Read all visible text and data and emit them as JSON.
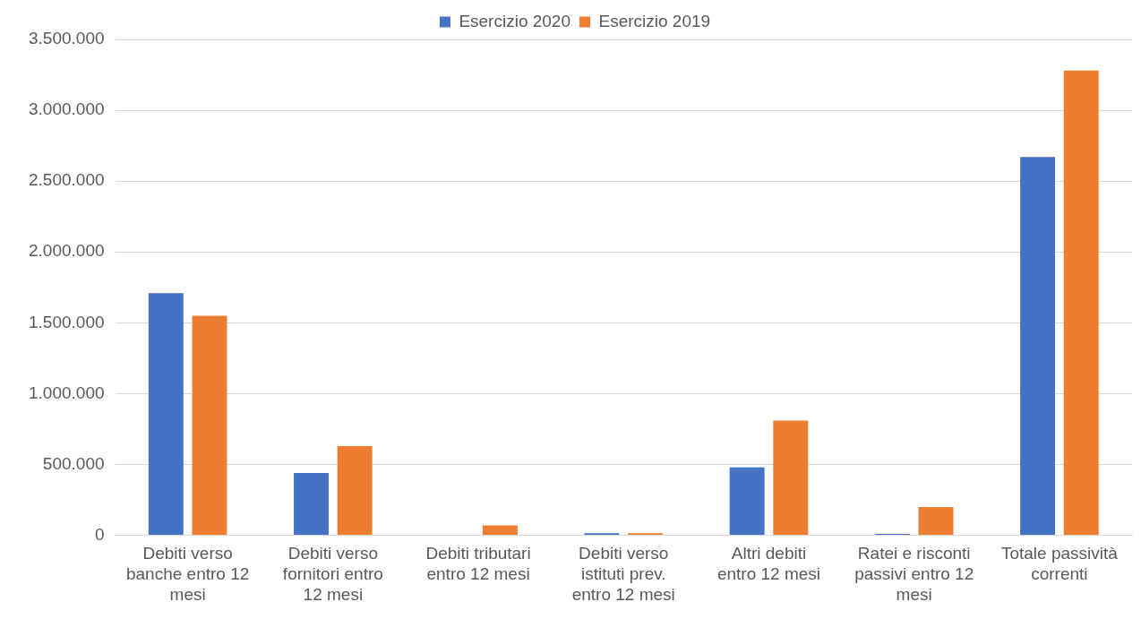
{
  "chart_data": {
    "type": "bar",
    "categories": [
      "Debiti verso banche entro 12 mesi",
      "Debiti verso fornitori entro 12 mesi",
      "Debiti tributari entro 12 mesi",
      "Debiti verso istituti prev. entro 12 mesi",
      "Altri debiti entro 12 mesi",
      "Ratei e risconti passivi entro 12 mesi",
      "Totale passività correnti"
    ],
    "series": [
      {
        "name": "Esercizio 2020",
        "color": "#4472c4",
        "values": [
          1710000,
          440000,
          0,
          15000,
          480000,
          10000,
          2670000
        ]
      },
      {
        "name": "Esercizio 2019",
        "color": "#ed7d31",
        "values": [
          1550000,
          630000,
          70000,
          15000,
          810000,
          200000,
          3280000
        ]
      }
    ],
    "ylim": [
      0,
      3500000
    ],
    "yticks": [
      {
        "value": 0,
        "label": "0"
      },
      {
        "value": 500000,
        "label": "500.000"
      },
      {
        "value": 1000000,
        "label": "1.000.000"
      },
      {
        "value": 1500000,
        "label": "1.500.000"
      },
      {
        "value": 2000000,
        "label": "2.000.000"
      },
      {
        "value": 2500000,
        "label": "2.500.000"
      },
      {
        "value": 3000000,
        "label": "3.000.000"
      },
      {
        "value": 3500000,
        "label": "3.500.000"
      }
    ],
    "grid": "y",
    "legend": "top"
  }
}
